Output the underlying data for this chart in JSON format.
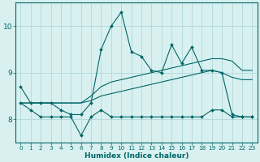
{
  "xlabel": "Humidex (Indice chaleur)",
  "x_values": [
    0,
    1,
    2,
    3,
    4,
    5,
    6,
    7,
    8,
    9,
    10,
    11,
    12,
    13,
    14,
    15,
    16,
    17,
    18,
    19,
    20,
    21,
    22,
    23
  ],
  "line1_y": [
    8.7,
    8.35,
    8.35,
    8.35,
    8.2,
    8.1,
    8.1,
    8.35,
    9.5,
    10.0,
    10.3,
    9.45,
    9.35,
    9.05,
    9.0,
    9.6,
    9.2,
    9.55,
    9.05,
    9.05,
    9.0,
    8.1,
    8.05,
    8.05
  ],
  "line2_y": [
    8.35,
    8.2,
    8.05,
    8.05,
    8.05,
    8.05,
    7.65,
    8.05,
    8.2,
    8.05,
    8.05,
    8.05,
    8.05,
    8.05,
    8.05,
    8.05,
    8.05,
    8.05,
    8.05,
    8.2,
    8.2,
    8.05,
    8.05,
    8.05
  ],
  "line3_y": [
    8.35,
    8.35,
    8.35,
    8.35,
    8.35,
    8.35,
    8.35,
    8.5,
    8.7,
    8.8,
    8.85,
    8.9,
    8.95,
    9.0,
    9.05,
    9.1,
    9.15,
    9.2,
    9.25,
    9.3,
    9.3,
    9.25,
    9.05,
    9.05
  ],
  "line4_y": [
    8.35,
    8.35,
    8.35,
    8.35,
    8.35,
    8.35,
    8.35,
    8.4,
    8.5,
    8.55,
    8.6,
    8.65,
    8.7,
    8.75,
    8.8,
    8.85,
    8.9,
    8.95,
    9.0,
    9.05,
    9.0,
    8.9,
    8.85,
    8.85
  ],
  "line_color": "#006666",
  "bg_color": "#d8f0f0",
  "grid_color": "#aad4d4",
  "ylim": [
    7.5,
    10.5
  ],
  "xlim": [
    -0.5,
    23.5
  ],
  "yticks": [
    8,
    9,
    10
  ],
  "xticks": [
    0,
    1,
    2,
    3,
    4,
    5,
    6,
    7,
    8,
    9,
    10,
    11,
    12,
    13,
    14,
    15,
    16,
    17,
    18,
    19,
    20,
    21,
    22,
    23
  ]
}
